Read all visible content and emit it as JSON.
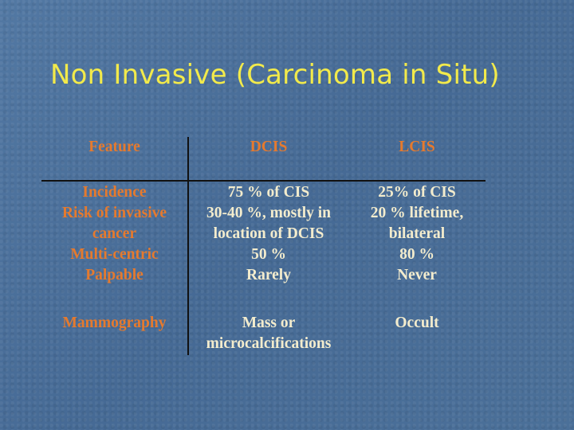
{
  "title": "Non Invasive (Carcinoma in Situ)",
  "table": {
    "headers": [
      "Feature",
      "DCIS",
      "LCIS"
    ],
    "features": [
      "Incidence",
      "Risk of invasive",
      "cancer",
      "Multi-centric",
      "Palpable",
      "Mammography"
    ],
    "dcis": [
      "75 %   of CIS",
      "30-40 %, mostly in",
      "location of DCIS",
      "50 %",
      "Rarely",
      "Mass or",
      "microcalcifications"
    ],
    "lcis": [
      "25% of  CIS",
      "20 % lifetime,",
      "bilateral",
      "80 %",
      "Never",
      "Occult"
    ]
  }
}
